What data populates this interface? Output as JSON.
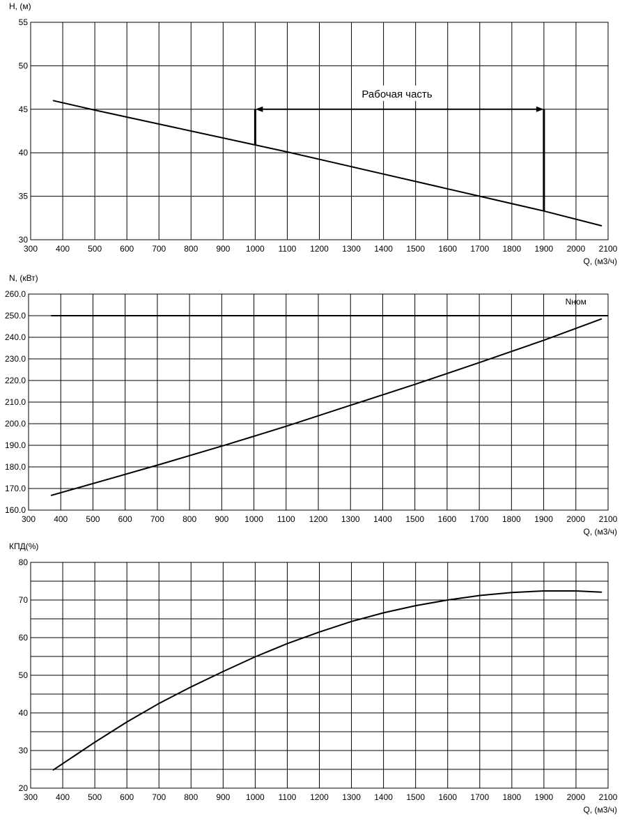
{
  "chart_data": [
    {
      "type": "line",
      "ylabel": "H, (м)",
      "xlabel": "Q, (м3/ч)",
      "xlim": [
        300,
        2100
      ],
      "ylim": [
        30,
        55
      ],
      "x_ticks": [
        300,
        400,
        500,
        600,
        700,
        800,
        900,
        1000,
        1100,
        1200,
        1300,
        1400,
        1500,
        1600,
        1700,
        1800,
        1900,
        2000,
        2100
      ],
      "y_ticks": [
        "30",
        "35",
        "40",
        "45",
        "50",
        "55"
      ],
      "y_tick_values": [
        30,
        35,
        40,
        45,
        50,
        55
      ],
      "grid": true,
      "series": [
        {
          "x": [
            370,
            500,
            700,
            900,
            1000,
            1100,
            1300,
            1500,
            1700,
            1900,
            2080
          ],
          "y": [
            46.0,
            44.9,
            43.3,
            41.7,
            40.9,
            40.1,
            38.4,
            36.7,
            35.0,
            33.3,
            31.6
          ]
        }
      ],
      "annotation": {
        "text": "Рабочая часть",
        "x_from": 1000,
        "x_to": 1900,
        "y": 45
      }
    },
    {
      "type": "line",
      "ylabel": "N, (кВт)",
      "xlabel": "Q, (м3/ч)",
      "xlim": [
        300,
        2100
      ],
      "ylim": [
        160,
        260
      ],
      "x_ticks": [
        300,
        400,
        500,
        600,
        700,
        800,
        900,
        1000,
        1100,
        1200,
        1300,
        1400,
        1500,
        1600,
        1700,
        1800,
        1900,
        2000,
        2100
      ],
      "y_ticks": [
        "160.0",
        "170.0",
        "180.0",
        "190.0",
        "200.0",
        "210.0",
        "220.0",
        "230.0",
        "240.0",
        "250.0",
        "260.0"
      ],
      "y_tick_values": [
        160,
        170,
        180,
        190,
        200,
        210,
        220,
        230,
        240,
        250,
        260
      ],
      "grid": true,
      "series": [
        {
          "x": [
            370,
            500,
            700,
            900,
            1000,
            1100,
            1300,
            1500,
            1700,
            1900,
            2080
          ],
          "y": [
            166.8,
            172.3,
            180.8,
            189.6,
            194.2,
            198.8,
            208.5,
            218.2,
            228.3,
            238.6,
            248.5
          ]
        }
      ],
      "reference_line": {
        "label": "Nном",
        "y": 250,
        "x_from": 370,
        "x_to": 2100
      }
    },
    {
      "type": "line",
      "ylabel": "КПД(%)",
      "xlabel": "Q, (м3/ч)",
      "xlim": [
        300,
        2100
      ],
      "ylim": [
        20,
        80
      ],
      "x_ticks": [
        300,
        400,
        500,
        600,
        700,
        800,
        900,
        1000,
        1100,
        1200,
        1300,
        1400,
        1500,
        1600,
        1700,
        1800,
        1900,
        2000,
        2100
      ],
      "y_ticks": [
        "20",
        "30",
        "40",
        "50",
        "60",
        "70",
        "80"
      ],
      "y_tick_values": [
        20,
        30,
        40,
        50,
        60,
        70,
        80
      ],
      "y_minor_step": 5,
      "grid": true,
      "series": [
        {
          "x": [
            370,
            500,
            600,
            700,
            800,
            900,
            1000,
            1100,
            1200,
            1300,
            1400,
            1500,
            1600,
            1700,
            1800,
            1900,
            2000,
            2080
          ],
          "y": [
            24.8,
            32.2,
            37.6,
            42.5,
            46.9,
            51.0,
            54.9,
            58.4,
            61.5,
            64.3,
            66.6,
            68.5,
            70.0,
            71.2,
            72.0,
            72.4,
            72.4,
            72.1
          ]
        }
      ]
    }
  ]
}
